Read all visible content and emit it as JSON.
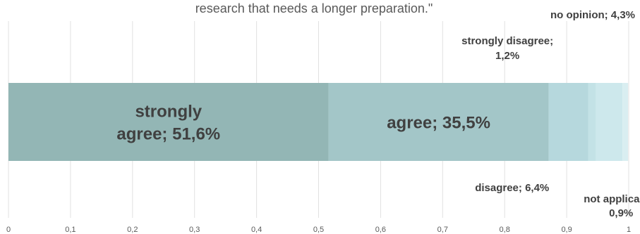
{
  "chart_data": {
    "type": "bar",
    "orientation": "horizontal",
    "stacked": true,
    "title": "research that needs a longer preparation.\"",
    "xlim": [
      0,
      1
    ],
    "xticks": [
      "0",
      "0,1",
      "0,2",
      "0,3",
      "0,4",
      "0,5",
      "0,6",
      "0,7",
      "0,8",
      "0,9",
      "1"
    ],
    "grid": "vertical",
    "series": [
      {
        "name": "strongly agree",
        "value": 0.516,
        "label_lines": [
          "strongly",
          "agree; 51,6%"
        ],
        "color": "#93b6b5",
        "label_position": "inside"
      },
      {
        "name": "agree",
        "value": 0.355,
        "label_lines": [
          "agree; 35,5%"
        ],
        "color": "#a3c6c8",
        "label_position": "inside"
      },
      {
        "name": "disagree",
        "value": 0.064,
        "label_lines": [
          "disagree; 6,4%"
        ],
        "color": "#b6d8dd",
        "label_position": "below"
      },
      {
        "name": "strongly disagree",
        "value": 0.012,
        "label_lines": [
          "strongly disagree;",
          "1,2%"
        ],
        "color": "#c3e2e6",
        "label_position": "above"
      },
      {
        "name": "no opinion",
        "value": 0.043,
        "label_lines": [
          "no opinion; 4,3%"
        ],
        "color": "#cde8ec",
        "label_position": "above"
      },
      {
        "name": "not applicable",
        "value": 0.009,
        "label_lines": [
          "not applicable;",
          "0,9%"
        ],
        "color": "#d9eef1",
        "label_position": "below"
      }
    ]
  }
}
